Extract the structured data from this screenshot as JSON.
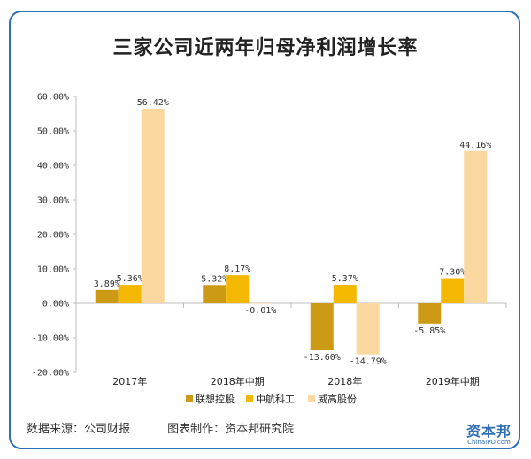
{
  "title": "三家公司近两年归母净利润增长率",
  "footer": {
    "source": "数据来源：公司财报",
    "maker": "图表制作：资本邦研究院"
  },
  "logo": {
    "name": "资本邦",
    "url": "ChinaIPO.com"
  },
  "chart_data": {
    "type": "bar",
    "categories": [
      "2017年",
      "2018年中期",
      "2018年",
      "2019年中期"
    ],
    "series": [
      {
        "name": "联想控股",
        "color": "#cc9a14",
        "values": [
          3.89,
          5.32,
          -13.6,
          -5.85
        ],
        "labels": [
          "3.89%",
          "5.32%",
          "-13.60%",
          "-5.85%"
        ]
      },
      {
        "name": "中航科工",
        "color": "#f5b800",
        "values": [
          5.36,
          8.17,
          5.37,
          7.3
        ],
        "labels": [
          "5.36%",
          "8.17%",
          "5.37%",
          "7.30%"
        ]
      },
      {
        "name": "威高股份",
        "color": "#fbd8a0",
        "values": [
          56.42,
          -0.01,
          -14.79,
          44.16
        ],
        "labels": [
          "56.42%",
          "-0.01%",
          "-14.79%",
          "44.16%"
        ]
      }
    ],
    "ylim": [
      -20,
      60
    ],
    "yticks": [
      -20,
      -10,
      0,
      10,
      20,
      30,
      40,
      50,
      60
    ],
    "ytick_labels": [
      "-20.00%",
      "-10.00%",
      "0.00%",
      "10.00%",
      "20.00%",
      "30.00%",
      "40.00%",
      "50.00%",
      "60.00%"
    ],
    "grid": false,
    "legend": "bottom"
  }
}
